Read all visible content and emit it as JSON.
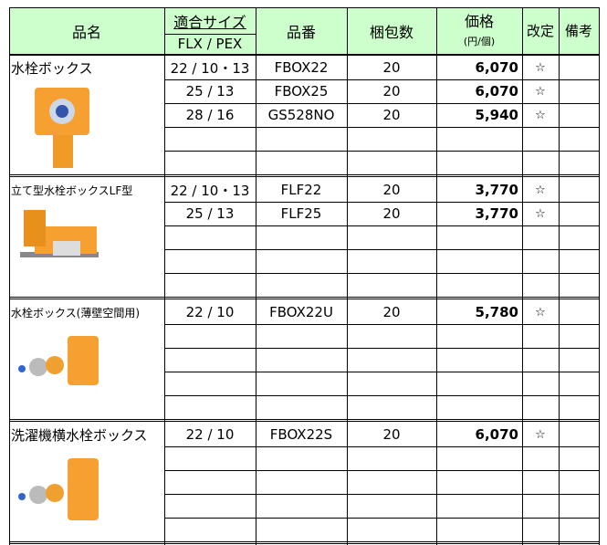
{
  "header": {
    "name": "品名",
    "size": "適合サイズ",
    "size_sub": "FLX / PEX",
    "part": "品番",
    "qty": "梱包数",
    "price": "価格",
    "price_unit": "(円/個)",
    "revised": "改定",
    "notes": "備考"
  },
  "groups": [
    {
      "name": "水栓ボックス",
      "rows": [
        {
          "size": "22 / 10・13",
          "part": "FBOX22",
          "qty": "20",
          "price": "6,070",
          "mark": "☆"
        },
        {
          "size": "25 / 13",
          "part": "FBOX25",
          "qty": "20",
          "price": "6,070",
          "mark": "☆"
        },
        {
          "size": "28 / 16",
          "part": "GS528NO",
          "qty": "20",
          "price": "5,940",
          "mark": "☆"
        }
      ]
    },
    {
      "name": "立て型水栓ボックスLF型",
      "rows": [
        {
          "size": "22 / 10・13",
          "part": "FLF22",
          "qty": "20",
          "price": "3,770",
          "mark": "☆"
        },
        {
          "size": "25 / 13",
          "part": "FLF25",
          "qty": "20",
          "price": "3,770",
          "mark": "☆"
        }
      ]
    },
    {
      "name": "水栓ボックス(薄壁空間用)",
      "rows": [
        {
          "size": "22 / 10",
          "part": "FBOX22U",
          "qty": "20",
          "price": "5,780",
          "mark": "☆"
        }
      ]
    },
    {
      "name": "洗濯機横水栓ボックス",
      "rows": [
        {
          "size": "22 / 10",
          "part": "FBOX22S",
          "qty": "20",
          "price": "6,070",
          "mark": "☆"
        }
      ]
    }
  ]
}
